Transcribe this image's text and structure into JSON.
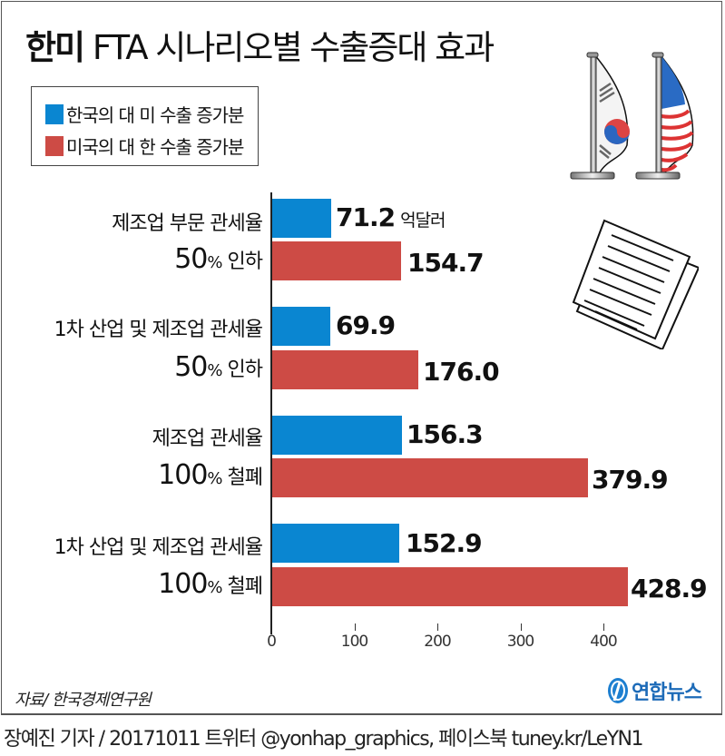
{
  "header": {
    "title_bold": "한미",
    "title_rest": " FTA 시나리오별 수출증대 효과"
  },
  "legend": {
    "items": [
      {
        "label": "한국의 대 미 수출 증가분",
        "color": "#0a86d1"
      },
      {
        "label": "미국의 대 한 수출 증가분",
        "color": "#cd4b45"
      }
    ]
  },
  "chart_data": {
    "type": "bar",
    "orientation": "horizontal",
    "title": "한미 FTA 시나리오별 수출증대 효과",
    "unit": "억달러",
    "categories": [
      "제조업 부문 관세율 50% 인하",
      "1차 산업 및 제조업 관세율 50% 인하",
      "제조업 관세율 100% 철폐",
      "1차 산업 및 제조업 관세율 100% 철폐"
    ],
    "series": [
      {
        "name": "한국의 대 미 수출 증가분",
        "color": "#0a86d1",
        "values": [
          71.2,
          69.9,
          156.3,
          152.9
        ]
      },
      {
        "name": "미국의 대 한 수출 증가분",
        "color": "#cd4b45",
        "values": [
          154.7,
          176.0,
          379.9,
          428.9
        ]
      }
    ],
    "xticks": [
      0,
      100,
      200,
      300,
      400
    ],
    "xlim": [
      0,
      440
    ],
    "grid": false,
    "legend_position": "top-left"
  },
  "categories": [
    {
      "line1": "제조업 부문 관세율",
      "pct": "50",
      "pct_sign": "%",
      "action": " 인하",
      "kr": "71.2",
      "us": "154.7",
      "unit": "억달러"
    },
    {
      "line1": "1차 산업 및 제조업 관세율",
      "pct": "50",
      "pct_sign": "%",
      "action": " 인하",
      "kr": "69.9",
      "us": "176.0"
    },
    {
      "line1": "제조업 관세율",
      "pct": "100",
      "pct_sign": "%",
      "action": " 철폐",
      "kr": "156.3",
      "us": "379.9"
    },
    {
      "line1": "1차 산업 및 제조업 관세율",
      "pct": "100",
      "pct_sign": "%",
      "action": " 철폐",
      "kr": "152.9",
      "us": "428.9"
    }
  ],
  "axis": {
    "ticks": [
      "0",
      "100",
      "200",
      "300",
      "400"
    ]
  },
  "footer": {
    "source": "자료/ 한국경제연구원",
    "logo_text": "연합뉴스",
    "credit": "장예진 기자 / 20171011 트위터 @yonhap_graphics, 페이스북 tuney.kr/LeYN1"
  }
}
